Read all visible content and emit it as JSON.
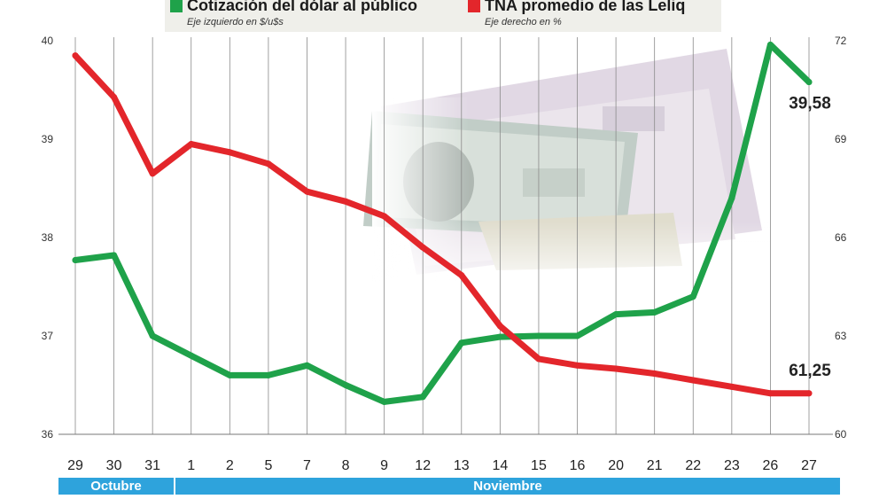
{
  "legend": [
    {
      "title": "Cotización del dólar al público",
      "subtitle": "Eje izquierdo en $/u$s",
      "color": "#1fa24a",
      "icon": "green-square-icon"
    },
    {
      "title": "TNA promedio de las Leliq",
      "subtitle": "Eje derecho en %",
      "color": "#e3262b",
      "icon": "red-square-icon"
    }
  ],
  "months": [
    "Octubre",
    "Noviembre"
  ],
  "chart_data": {
    "type": "line",
    "x": [
      "29",
      "30",
      "31",
      "1",
      "2",
      "5",
      "7",
      "8",
      "9",
      "12",
      "13",
      "14",
      "15",
      "16",
      "20",
      "21",
      "22",
      "23",
      "26",
      "27"
    ],
    "month_groups": [
      {
        "label": "Octubre",
        "categories": [
          "29",
          "30",
          "31"
        ]
      },
      {
        "label": "Noviembre",
        "categories": [
          "1",
          "2",
          "5",
          "7",
          "8",
          "9",
          "12",
          "13",
          "14",
          "15",
          "16",
          "20",
          "21",
          "22",
          "23",
          "26",
          "27"
        ]
      }
    ],
    "y_left": {
      "label": "Eje izquierdo en $/u$s",
      "ticks": [
        36,
        37,
        38,
        39,
        40
      ],
      "range": [
        36,
        40
      ]
    },
    "y_right": {
      "label": "Eje derecho en %",
      "ticks": [
        60,
        63,
        66,
        69,
        72
      ],
      "range": [
        60,
        72
      ]
    },
    "grid": "vertical",
    "series": [
      {
        "name": "Cotización del dólar al público",
        "axis": "left",
        "color": "#1fa24a",
        "values": [
          37.77,
          37.82,
          37.0,
          36.8,
          36.6,
          36.6,
          36.7,
          36.5,
          36.33,
          36.38,
          36.93,
          36.99,
          37.0,
          37.0,
          37.22,
          37.24,
          37.4,
          38.4,
          39.96,
          39.58
        ],
        "end_label": "39,58"
      },
      {
        "name": "TNA promedio de las Leliq",
        "axis": "right",
        "color": "#e3262b",
        "values": [
          71.55,
          70.28,
          67.95,
          68.85,
          68.6,
          68.25,
          67.4,
          67.1,
          66.65,
          65.7,
          64.85,
          63.3,
          62.3,
          62.1,
          62.0,
          61.85,
          61.65,
          61.45,
          61.25,
          61.25
        ],
        "end_label": "61,25"
      }
    ]
  }
}
